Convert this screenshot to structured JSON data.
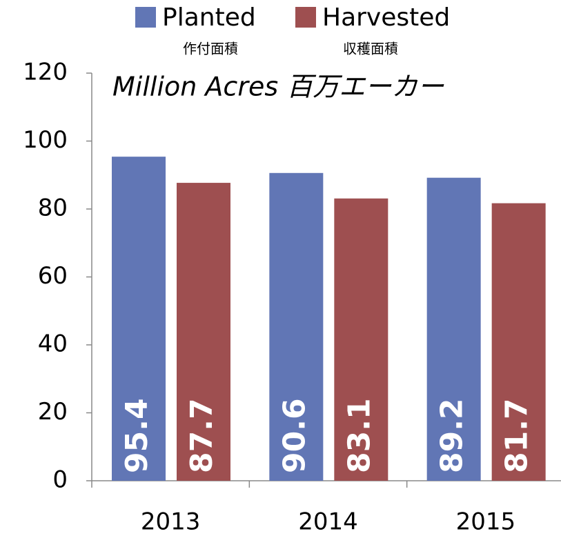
{
  "chart_data": {
    "type": "bar",
    "annotation": "Million Acres   百万エーカー",
    "categories": [
      "2013",
      "2014",
      "2015"
    ],
    "series": [
      {
        "name": "Planted",
        "subtitle": "作付面積",
        "color": "#6176b5",
        "values": [
          95.4,
          90.6,
          89.2
        ]
      },
      {
        "name": "Harvested",
        "subtitle": "収穫面積",
        "color": "#9e4f50",
        "values": [
          87.7,
          83.1,
          81.7
        ]
      }
    ],
    "ylim": [
      0,
      120
    ],
    "yticks": [
      0,
      20,
      40,
      60,
      80,
      100,
      120
    ],
    "grid": false,
    "legend": "top"
  }
}
